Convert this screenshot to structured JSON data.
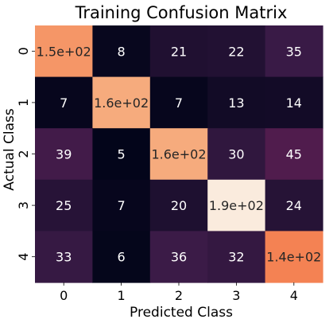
{
  "chart_data": {
    "type": "heatmap",
    "title": "Training Confusion Matrix",
    "xlabel": "Predicted Class",
    "ylabel": "Actual Class",
    "x_categories": [
      "0",
      "1",
      "2",
      "3",
      "4"
    ],
    "y_categories": [
      "0",
      "1",
      "2",
      "3",
      "4"
    ],
    "values": [
      [
        150,
        8,
        21,
        22,
        35
      ],
      [
        7,
        160,
        7,
        13,
        14
      ],
      [
        39,
        5,
        160,
        30,
        45
      ],
      [
        25,
        7,
        20,
        190,
        24
      ],
      [
        33,
        6,
        36,
        32,
        140
      ]
    ],
    "cell_labels": [
      [
        "1.5e+02",
        "8",
        "21",
        "22",
        "35"
      ],
      [
        "7",
        "1.6e+02",
        "7",
        "13",
        "14"
      ],
      [
        "39",
        "5",
        "1.6e+02",
        "30",
        "45"
      ],
      [
        "25",
        "7",
        "20",
        "1.9e+02",
        "24"
      ],
      [
        "33",
        "6",
        "36",
        "32",
        "1.4e+02"
      ]
    ],
    "colormap": [
      "#03051a",
      "#3b1b47",
      "#801f5b",
      "#c5214f",
      "#f26a3b",
      "#f6a97a",
      "#faebdd"
    ],
    "grid": false,
    "colorbar": false
  }
}
